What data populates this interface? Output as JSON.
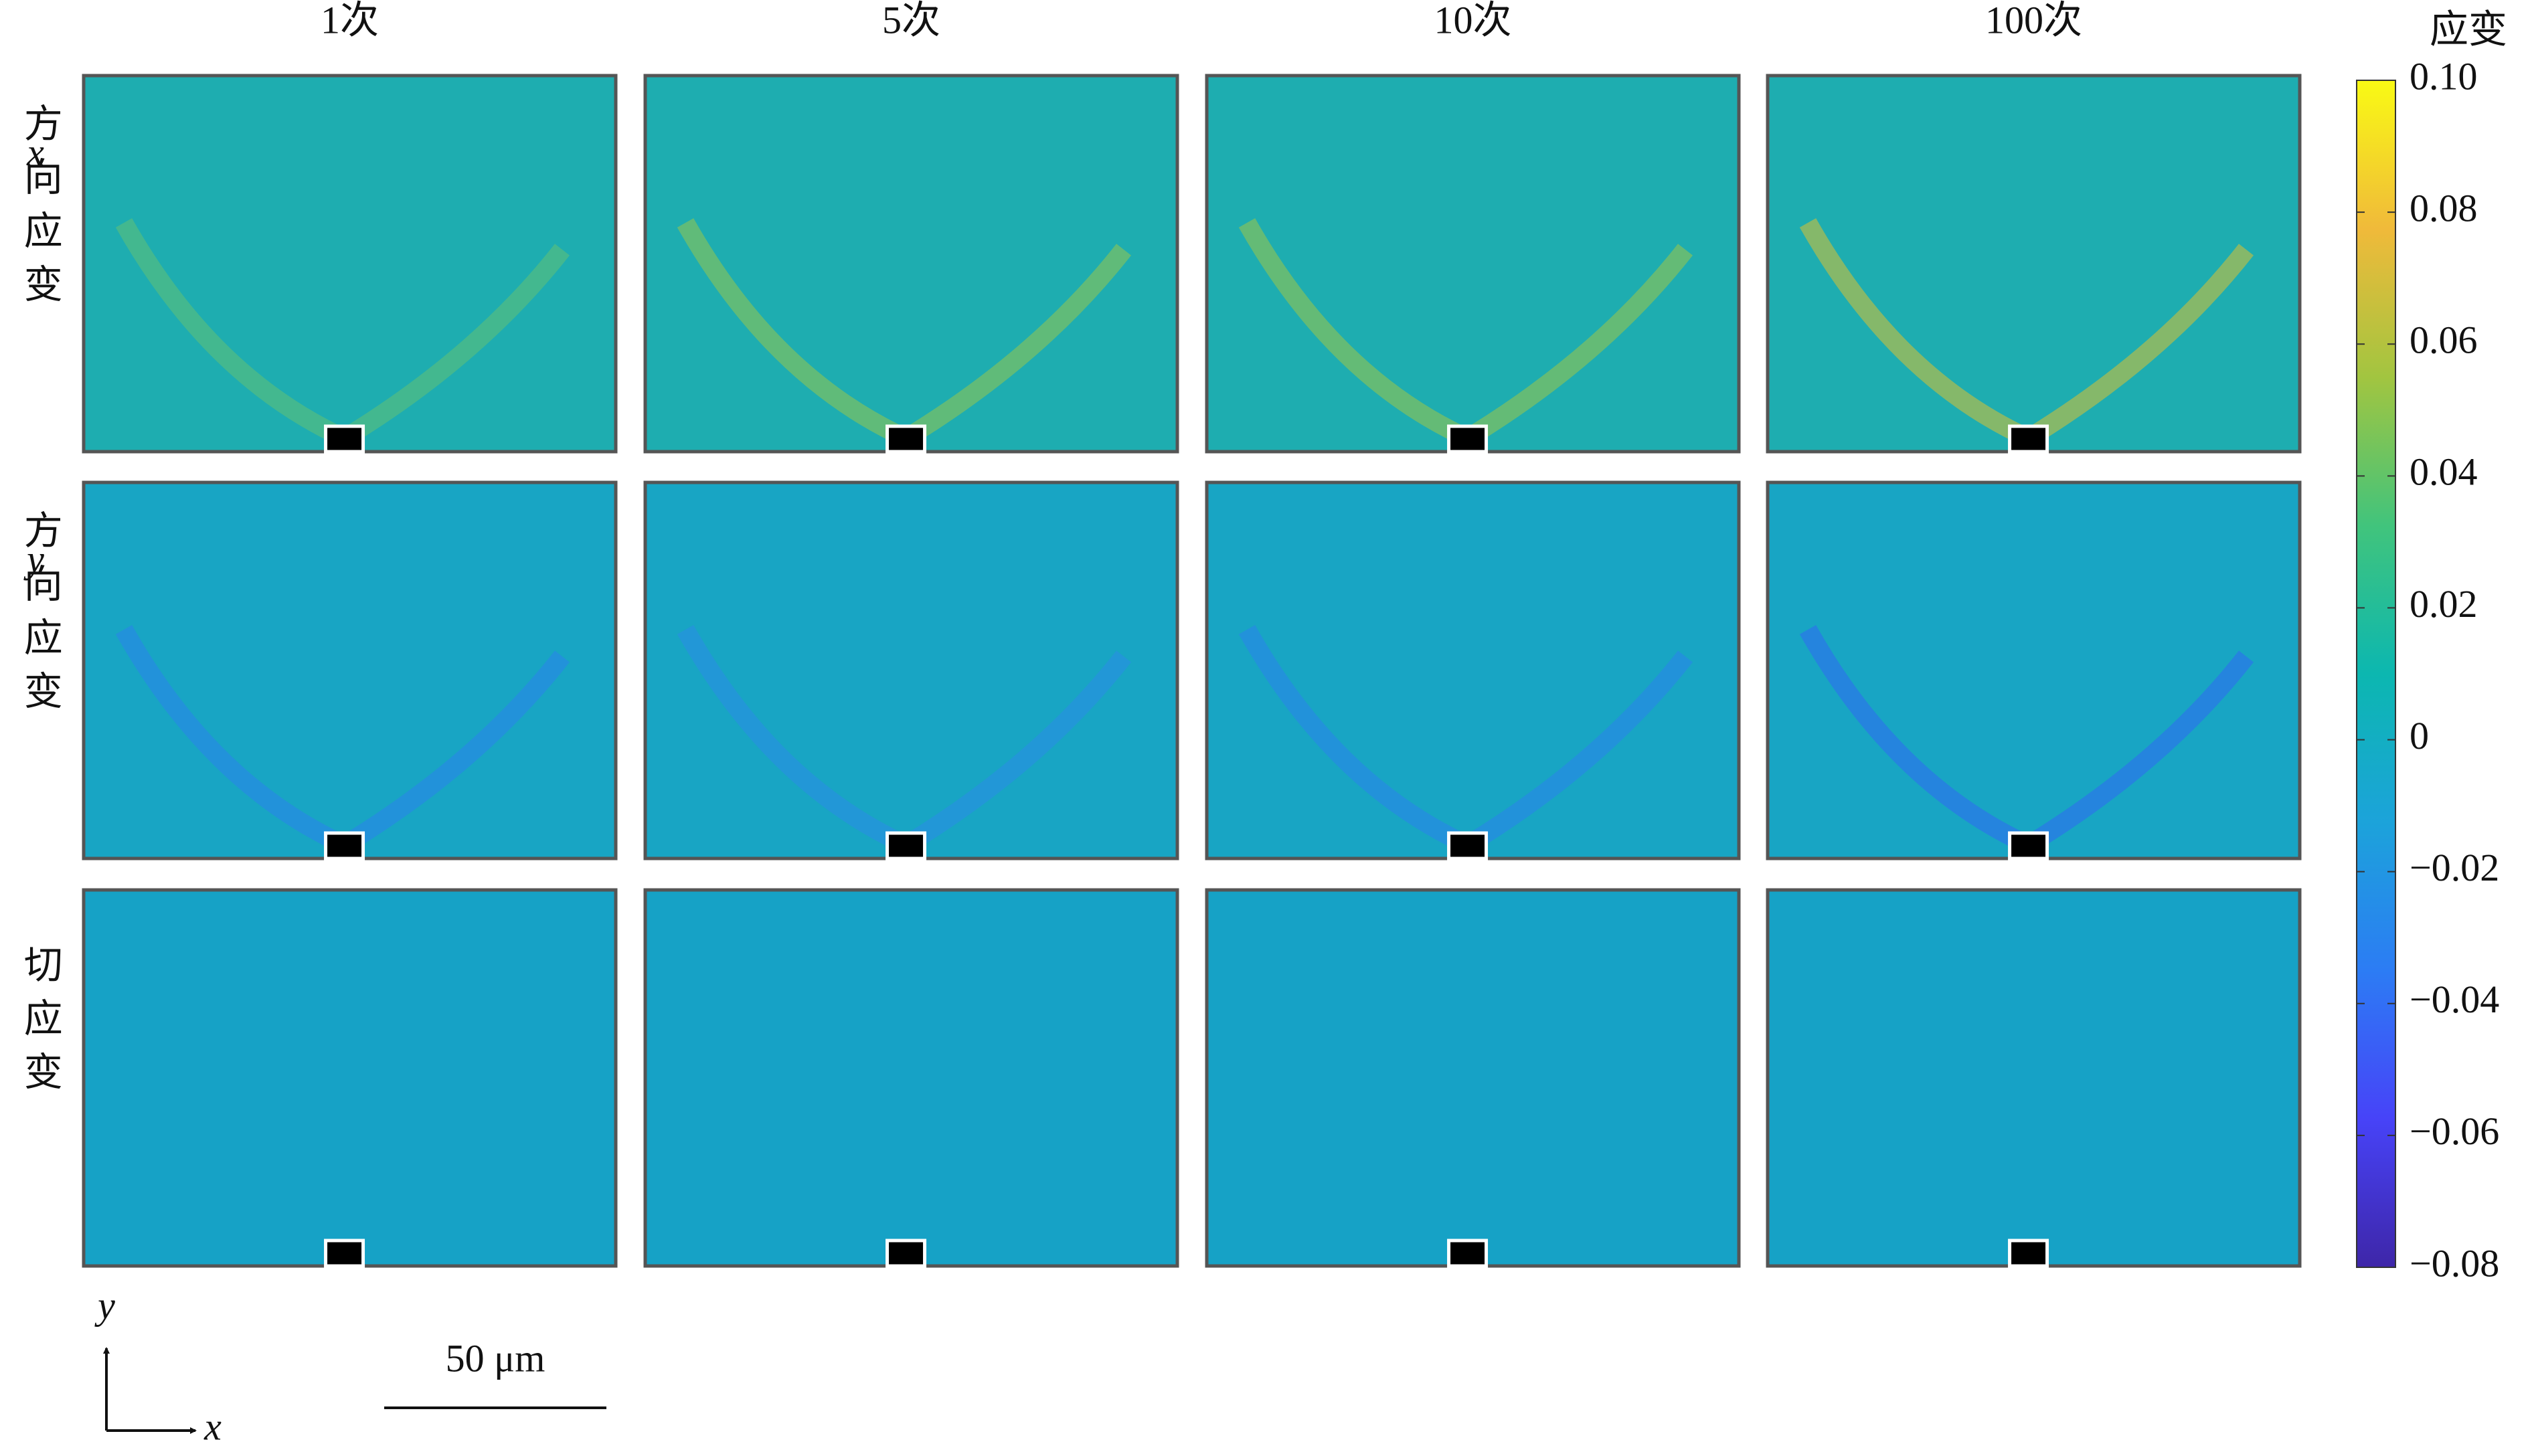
{
  "column_labels": [
    "1次",
    "5次",
    "10次",
    "100次"
  ],
  "row_labels": [
    {
      "var": "x",
      "text": "方向应变"
    },
    {
      "var": "y",
      "text": "方向应变"
    },
    {
      "var": null,
      "text": "切应变"
    }
  ],
  "colorbar": {
    "title": "应变",
    "lim": [
      -0.08,
      0.1
    ],
    "ticks": [
      {
        "value": 0.1,
        "label": "0.10"
      },
      {
        "value": 0.08,
        "label": "0.08"
      },
      {
        "value": 0.06,
        "label": "0.06"
      },
      {
        "value": 0.04,
        "label": "0.04"
      },
      {
        "value": 0.02,
        "label": "0.02"
      },
      0,
      {
        "value": -0.02,
        "label": "−0.02"
      },
      {
        "value": -0.04,
        "label": "−0.04"
      },
      {
        "value": -0.06,
        "label": "−0.06"
      },
      {
        "value": -0.08,
        "label": "−0.08"
      }
    ],
    "colormap": [
      "#3e26a8",
      "#4743f8",
      "#2c7cf4",
      "#1ca3da",
      "#0cb7b0",
      "#41c47c",
      "#a2c540",
      "#f0ba3a",
      "#f9fa14"
    ]
  },
  "scale_bar": {
    "label": "50 μm"
  },
  "axes": {
    "y": "y",
    "x": "x"
  }
}
